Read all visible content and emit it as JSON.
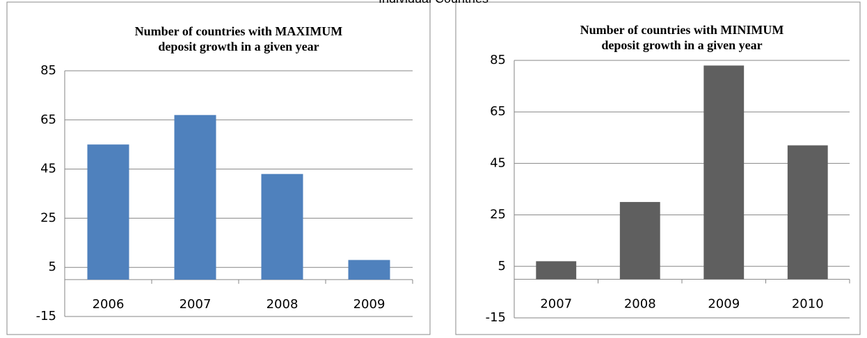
{
  "heading": "Individual Countries",
  "chart_data": [
    {
      "type": "bar",
      "title": "Number of countries with MAXIMUM deposit growth in a given year",
      "categories": [
        "2006",
        "2007",
        "2008",
        "2009"
      ],
      "values": [
        55,
        67,
        43,
        8
      ],
      "color": "#4f81bd",
      "ylim": [
        -15,
        85
      ],
      "yticks": [
        -15,
        5,
        25,
        45,
        65,
        85
      ],
      "grid": true
    },
    {
      "type": "bar",
      "title": "Number of countries with MINIMUM deposit growth in a given year",
      "categories": [
        "2007",
        "2008",
        "2009",
        "2010"
      ],
      "values": [
        7,
        30,
        83,
        52
      ],
      "color": "#5f5f5f",
      "ylim": [
        -15,
        85
      ],
      "yticks": [
        -15,
        5,
        25,
        45,
        65,
        85
      ],
      "grid": true
    }
  ]
}
